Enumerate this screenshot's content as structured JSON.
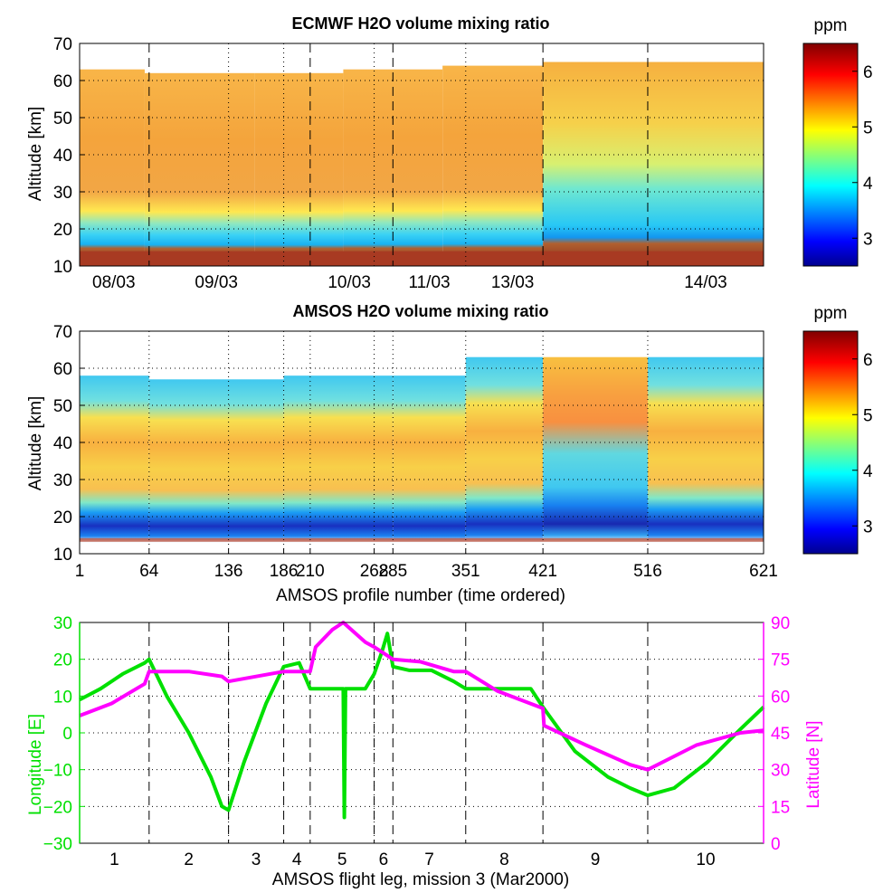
{
  "colors": {
    "green": "#00e000",
    "magenta": "#ff00ff",
    "colormap": "jet"
  },
  "chart_data": [
    {
      "type": "heatmap",
      "title": "ECMWF H2O volume mixing ratio",
      "ylabel": "Altitude [km]",
      "ylim": [
        10,
        70
      ],
      "yticks": [
        10,
        20,
        30,
        40,
        50,
        60,
        70
      ],
      "xlabel": "",
      "xtick_labels": [
        "08/03",
        "09/03",
        "10/03",
        "11/03",
        "13/03",
        "14/03"
      ],
      "colorbar": {
        "unit": "ppm",
        "range": [
          2.5,
          6.5
        ],
        "ticks": [
          3,
          4,
          5,
          6
        ]
      },
      "grid": true,
      "dashed_separators": true
    },
    {
      "type": "heatmap",
      "title": "AMSOS H2O volume mixing ratio",
      "ylabel": "Altitude [km]",
      "ylim": [
        10,
        70
      ],
      "yticks": [
        10,
        20,
        30,
        40,
        50,
        60,
        70
      ],
      "xlabel": "AMSOS profile number (time ordered)",
      "xlim": [
        1,
        621
      ],
      "xticks": [
        1,
        64,
        136,
        186,
        210,
        268,
        285,
        351,
        421,
        516,
        621
      ],
      "colorbar": {
        "unit": "ppm",
        "range": [
          2.5,
          6.5
        ],
        "ticks": [
          3,
          4,
          5,
          6
        ]
      },
      "grid": true
    },
    {
      "type": "line",
      "xlabel": "AMSOS flight leg, mission 3 (Mar2000)",
      "xtick_labels": [
        "1",
        "2",
        "3",
        "4",
        "5",
        "6",
        "7",
        "8",
        "9",
        "10"
      ],
      "leg_boundaries": [
        1,
        64,
        136,
        186,
        210,
        268,
        285,
        351,
        421,
        516,
        621
      ],
      "y_left": {
        "label": "Longitude [E]",
        "ylim": [
          -30,
          30
        ],
        "ticks": [
          -30,
          -20,
          -10,
          0,
          10,
          20,
          30
        ]
      },
      "y_right": {
        "label": "Latitude [N]",
        "ylim": [
          0,
          90
        ],
        "ticks": [
          0,
          15,
          30,
          45,
          60,
          75,
          90
        ]
      },
      "series": [
        {
          "axis": "left",
          "color": "#00e000",
          "x": [
            1,
            20,
            40,
            60,
            64,
            80,
            100,
            120,
            130,
            136,
            150,
            170,
            186,
            200,
            210,
            230,
            240,
            241,
            242,
            243,
            260,
            268,
            275,
            280,
            285,
            300,
            320,
            340,
            351,
            370,
            390,
            410,
            421,
            450,
            480,
            500,
            516,
            540,
            570,
            600,
            621
          ],
          "y": [
            9,
            12,
            16,
            19,
            20,
            10,
            0,
            -12,
            -20,
            -21,
            -8,
            8,
            18,
            19,
            12,
            12,
            12,
            -23,
            12,
            12,
            12,
            16,
            22,
            27,
            18,
            17,
            17,
            14,
            12,
            12,
            12,
            12,
            7,
            -5,
            -12,
            -15,
            -17,
            -15,
            -8,
            1,
            7
          ]
        },
        {
          "axis": "right",
          "color": "#ff00ff",
          "x": [
            1,
            30,
            60,
            64,
            100,
            130,
            136,
            186,
            210,
            215,
            230,
            240,
            260,
            268,
            285,
            310,
            340,
            351,
            380,
            421,
            422,
            460,
            500,
            516,
            560,
            600,
            621
          ],
          "y": [
            52,
            57,
            65,
            70,
            70,
            68,
            66,
            70,
            70,
            80,
            87,
            90,
            82,
            80,
            75,
            74,
            70,
            70,
            62,
            55,
            48,
            40,
            32,
            30,
            40,
            45,
            46
          ]
        }
      ],
      "grid": true
    }
  ]
}
